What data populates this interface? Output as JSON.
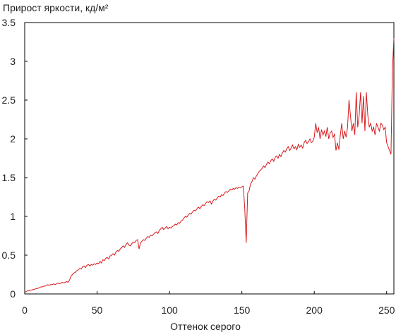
{
  "chart_data": {
    "type": "line",
    "title": "Прирост яркости, кд/м²",
    "x_label": "Оттенок серого",
    "xlim": [
      0,
      255
    ],
    "ylim": [
      0,
      3.5
    ],
    "xticks": [
      0,
      50,
      100,
      150,
      200,
      250
    ],
    "yticks": [
      0,
      0.5,
      1,
      1.5,
      2,
      2.5,
      3,
      3.5
    ],
    "x": [
      0,
      1,
      2,
      3,
      4,
      5,
      6,
      7,
      8,
      9,
      10,
      11,
      12,
      13,
      14,
      15,
      16,
      17,
      18,
      19,
      20,
      21,
      22,
      23,
      24,
      25,
      26,
      27,
      28,
      29,
      30,
      31,
      32,
      33,
      34,
      35,
      36,
      37,
      38,
      39,
      40,
      41,
      42,
      43,
      44,
      45,
      46,
      47,
      48,
      49,
      50,
      51,
      52,
      53,
      54,
      55,
      56,
      57,
      58,
      59,
      60,
      61,
      62,
      63,
      64,
      65,
      66,
      67,
      68,
      69,
      70,
      71,
      72,
      73,
      74,
      75,
      76,
      77,
      78,
      79,
      80,
      81,
      82,
      83,
      84,
      85,
      86,
      87,
      88,
      89,
      90,
      91,
      92,
      93,
      94,
      95,
      96,
      97,
      98,
      99,
      100,
      101,
      102,
      103,
      104,
      105,
      106,
      107,
      108,
      109,
      110,
      111,
      112,
      113,
      114,
      115,
      116,
      117,
      118,
      119,
      120,
      121,
      122,
      123,
      124,
      125,
      126,
      127,
      128,
      129,
      130,
      131,
      132,
      133,
      134,
      135,
      136,
      137,
      138,
      139,
      140,
      141,
      142,
      143,
      144,
      145,
      146,
      147,
      148,
      149,
      150,
      151,
      152,
      153,
      154,
      155,
      156,
      157,
      158,
      159,
      160,
      161,
      162,
      163,
      164,
      165,
      166,
      167,
      168,
      169,
      170,
      171,
      172,
      173,
      174,
      175,
      176,
      177,
      178,
      179,
      180,
      181,
      182,
      183,
      184,
      185,
      186,
      187,
      188,
      189,
      190,
      191,
      192,
      193,
      194,
      195,
      196,
      197,
      198,
      199,
      200,
      201,
      202,
      203,
      204,
      205,
      206,
      207,
      208,
      209,
      210,
      211,
      212,
      213,
      214,
      215,
      216,
      217,
      218,
      219,
      220,
      221,
      222,
      223,
      224,
      225,
      226,
      227,
      228,
      229,
      230,
      231,
      232,
      233,
      234,
      235,
      236,
      237,
      238,
      239,
      240,
      241,
      242,
      243,
      244,
      245,
      246,
      247,
      248,
      249,
      250,
      251,
      252,
      253,
      254,
      255
    ],
    "series": [
      {
        "color": "#d7191c",
        "values": [
          0.02,
          0.03,
          0.04,
          0.04,
          0.05,
          0.05,
          0.06,
          0.06,
          0.07,
          0.07,
          0.08,
          0.09,
          0.09,
          0.1,
          0.1,
          0.11,
          0.12,
          0.11,
          0.12,
          0.12,
          0.13,
          0.12,
          0.13,
          0.14,
          0.13,
          0.14,
          0.15,
          0.14,
          0.15,
          0.16,
          0.15,
          0.18,
          0.23,
          0.25,
          0.27,
          0.28,
          0.3,
          0.31,
          0.33,
          0.32,
          0.35,
          0.36,
          0.34,
          0.37,
          0.38,
          0.36,
          0.38,
          0.37,
          0.39,
          0.38,
          0.4,
          0.39,
          0.42,
          0.4,
          0.44,
          0.43,
          0.46,
          0.47,
          0.45,
          0.49,
          0.5,
          0.52,
          0.5,
          0.54,
          0.56,
          0.55,
          0.58,
          0.6,
          0.62,
          0.6,
          0.64,
          0.66,
          0.63,
          0.62,
          0.65,
          0.67,
          0.66,
          0.69,
          0.7,
          0.58,
          0.66,
          0.68,
          0.7,
          0.69,
          0.72,
          0.74,
          0.73,
          0.76,
          0.75,
          0.77,
          0.79,
          0.8,
          0.78,
          0.82,
          0.84,
          0.86,
          0.83,
          0.85,
          0.87,
          0.84,
          0.86,
          0.85,
          0.87,
          0.88,
          0.9,
          0.89,
          0.92,
          0.91,
          0.94,
          0.95,
          0.98,
          1.0,
          0.99,
          1.02,
          1.04,
          1.03,
          1.06,
          1.08,
          1.07,
          1.1,
          1.12,
          1.1,
          1.13,
          1.15,
          1.14,
          1.17,
          1.19,
          1.18,
          1.2,
          1.16,
          1.2,
          1.22,
          1.21,
          1.24,
          1.26,
          1.25,
          1.28,
          1.27,
          1.3,
          1.32,
          1.31,
          1.33,
          1.35,
          1.34,
          1.36,
          1.35,
          1.37,
          1.36,
          1.38,
          1.37,
          1.38,
          1.39,
          1.1,
          0.66,
          1.3,
          1.33,
          1.42,
          1.45,
          1.5,
          1.48,
          1.52,
          1.55,
          1.58,
          1.6,
          1.62,
          1.65,
          1.63,
          1.67,
          1.7,
          1.68,
          1.72,
          1.74,
          1.71,
          1.76,
          1.78,
          1.75,
          1.8,
          1.77,
          1.82,
          1.85,
          1.83,
          1.87,
          1.9,
          1.85,
          1.88,
          1.92,
          1.87,
          1.9,
          1.86,
          1.93,
          1.89,
          1.92,
          1.88,
          1.95,
          1.98,
          1.94,
          1.96,
          2.0,
          1.95,
          1.97,
          2.02,
          2.2,
          2.08,
          2.15,
          2.0,
          2.12,
          2.05,
          2.1,
          2.03,
          2.15,
          2.0,
          2.08,
          2.1,
          2.02,
          2.06,
          1.85,
          1.95,
          1.86,
          2.05,
          2.2,
          2.0,
          2.1,
          2.02,
          2.15,
          2.5,
          2.3,
          2.1,
          2.2,
          2.05,
          2.6,
          2.15,
          2.3,
          2.6,
          2.2,
          2.55,
          2.1,
          2.6,
          2.3,
          2.15,
          2.2,
          2.1,
          2.15,
          2.05,
          2.2,
          2.15,
          2.1,
          2.2,
          2.18,
          2.12,
          2.15,
          1.95,
          1.9,
          1.85,
          1.8,
          2.9,
          3.3
        ]
      }
    ]
  }
}
